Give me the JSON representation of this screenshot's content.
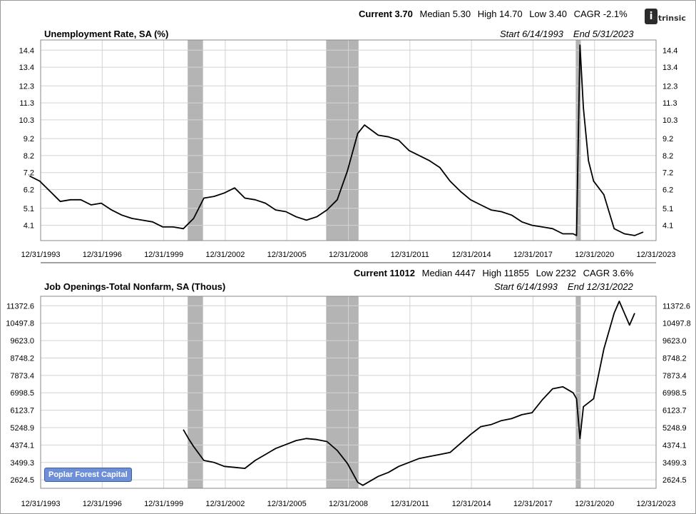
{
  "brand": {
    "logo_text": "ntrinsic",
    "badge_label": "Poplar Forest Capital"
  },
  "colors": {
    "line": "#000000",
    "recession_shade": "#b4b4b4",
    "grid": "#d3d3d3",
    "badge": "#6d8fd8"
  },
  "recessions": [
    [
      "2001-03-01",
      "2001-11-30"
    ],
    [
      "2007-12-01",
      "2009-06-30"
    ],
    [
      "2020-02-01",
      "2020-04-30"
    ]
  ],
  "chart_data": [
    {
      "type": "line",
      "title": "Unemployment Rate, SA (%)",
      "stats": {
        "current": "Current 3.70",
        "median": "Median 5.30",
        "high": "High 14.70",
        "low": "Low 3.40",
        "cagr": "CAGR -2.1%"
      },
      "start": "Start 6/14/1993",
      "end": "End 5/31/2023",
      "xrange": [
        "1993-12-31",
        "2023-12-31"
      ],
      "xticks": [
        "12/31/1993",
        "12/31/1996",
        "12/31/1999",
        "12/31/2002",
        "12/31/2005",
        "12/31/2008",
        "12/31/2011",
        "12/31/2014",
        "12/31/2017",
        "12/31/2020",
        "12/31/2023"
      ],
      "ylim": [
        3.2,
        15.0
      ],
      "yticks": [
        "4.1",
        "5.1",
        "6.2",
        "7.2",
        "8.2",
        "9.2",
        "10.3",
        "11.3",
        "12.3",
        "13.4",
        "14.4"
      ],
      "grid": true,
      "series": [
        {
          "x": [
            "1993-06",
            "1993-12",
            "1994-06",
            "1994-12",
            "1995-06",
            "1995-12",
            "1996-06",
            "1996-12",
            "1997-06",
            "1997-12",
            "1998-06",
            "1998-12",
            "1999-06",
            "1999-12",
            "2000-06",
            "2000-12",
            "2001-06",
            "2001-12",
            "2002-06",
            "2002-12",
            "2003-06",
            "2003-12",
            "2004-06",
            "2004-12",
            "2005-06",
            "2005-12",
            "2006-06",
            "2006-12",
            "2007-06",
            "2007-12",
            "2008-06",
            "2008-12",
            "2009-06",
            "2009-10",
            "2010-06",
            "2010-12",
            "2011-06",
            "2011-12",
            "2012-06",
            "2012-12",
            "2013-06",
            "2013-12",
            "2014-06",
            "2014-12",
            "2015-06",
            "2015-12",
            "2016-06",
            "2016-12",
            "2017-06",
            "2017-12",
            "2018-06",
            "2018-12",
            "2019-06",
            "2019-12",
            "2020-02",
            "2020-04",
            "2020-06",
            "2020-09",
            "2020-12",
            "2021-06",
            "2021-12",
            "2022-06",
            "2022-12",
            "2023-05"
          ],
          "values": [
            7.0,
            6.7,
            6.1,
            5.5,
            5.6,
            5.6,
            5.3,
            5.4,
            5.0,
            4.7,
            4.5,
            4.4,
            4.3,
            4.0,
            4.0,
            3.9,
            4.5,
            5.7,
            5.8,
            6.0,
            6.3,
            5.7,
            5.6,
            5.4,
            5.0,
            4.9,
            4.6,
            4.4,
            4.6,
            5.0,
            5.6,
            7.3,
            9.5,
            10.0,
            9.4,
            9.3,
            9.1,
            8.5,
            8.2,
            7.9,
            7.5,
            6.7,
            6.1,
            5.6,
            5.3,
            5.0,
            4.9,
            4.7,
            4.3,
            4.1,
            4.0,
            3.9,
            3.6,
            3.6,
            3.5,
            14.7,
            11.0,
            7.9,
            6.7,
            5.9,
            3.9,
            3.6,
            3.5,
            3.7
          ]
        }
      ]
    },
    {
      "type": "line",
      "title": "Job Openings-Total Nonfarm, SA (Thous)",
      "stats": {
        "current": "Current 11012",
        "median": "Median 4447",
        "high": "High 11855",
        "low": "Low 2232",
        "cagr": "CAGR 3.6%"
      },
      "start": "Start 6/14/1993",
      "end": "End 12/31/2022",
      "xrange": [
        "1993-12-31",
        "2023-12-31"
      ],
      "xticks": [
        "12/31/1993",
        "12/31/1996",
        "12/31/1999",
        "12/31/2002",
        "12/31/2005",
        "12/31/2008",
        "12/31/2011",
        "12/31/2014",
        "12/31/2017",
        "12/31/2020",
        "12/31/2023"
      ],
      "ylim": [
        2200,
        11850
      ],
      "yticks": [
        "2624.5",
        "3499.3",
        "4374.1",
        "5248.9",
        "6123.7",
        "6998.5",
        "7873.4",
        "8748.2",
        "9623.0",
        "10497.8",
        "11372.6"
      ],
      "grid": true,
      "series": [
        {
          "x": [
            "2000-12",
            "2001-03",
            "2001-06",
            "2001-12",
            "2002-06",
            "2002-12",
            "2003-06",
            "2003-12",
            "2004-06",
            "2004-12",
            "2005-06",
            "2005-12",
            "2006-06",
            "2006-12",
            "2007-06",
            "2007-12",
            "2008-06",
            "2008-12",
            "2009-06",
            "2009-09",
            "2010-06",
            "2010-12",
            "2011-06",
            "2011-12",
            "2012-06",
            "2012-12",
            "2013-06",
            "2013-12",
            "2014-06",
            "2014-12",
            "2015-06",
            "2015-12",
            "2016-06",
            "2016-12",
            "2017-06",
            "2017-12",
            "2018-06",
            "2018-12",
            "2019-06",
            "2019-12",
            "2020-02",
            "2020-04",
            "2020-06",
            "2020-12",
            "2021-06",
            "2021-12",
            "2022-03",
            "2022-06",
            "2022-09",
            "2022-12"
          ],
          "values": [
            5150,
            4700,
            4300,
            3600,
            3500,
            3300,
            3250,
            3200,
            3600,
            3900,
            4200,
            4400,
            4600,
            4700,
            4650,
            4550,
            4100,
            3450,
            2500,
            2350,
            2800,
            3000,
            3300,
            3500,
            3700,
            3800,
            3900,
            4000,
            4450,
            4900,
            5300,
            5400,
            5600,
            5700,
            5900,
            6000,
            6650,
            7200,
            7300,
            7000,
            6700,
            4700,
            6300,
            6700,
            9200,
            11000,
            11600,
            11000,
            10400,
            11000
          ]
        }
      ]
    }
  ]
}
